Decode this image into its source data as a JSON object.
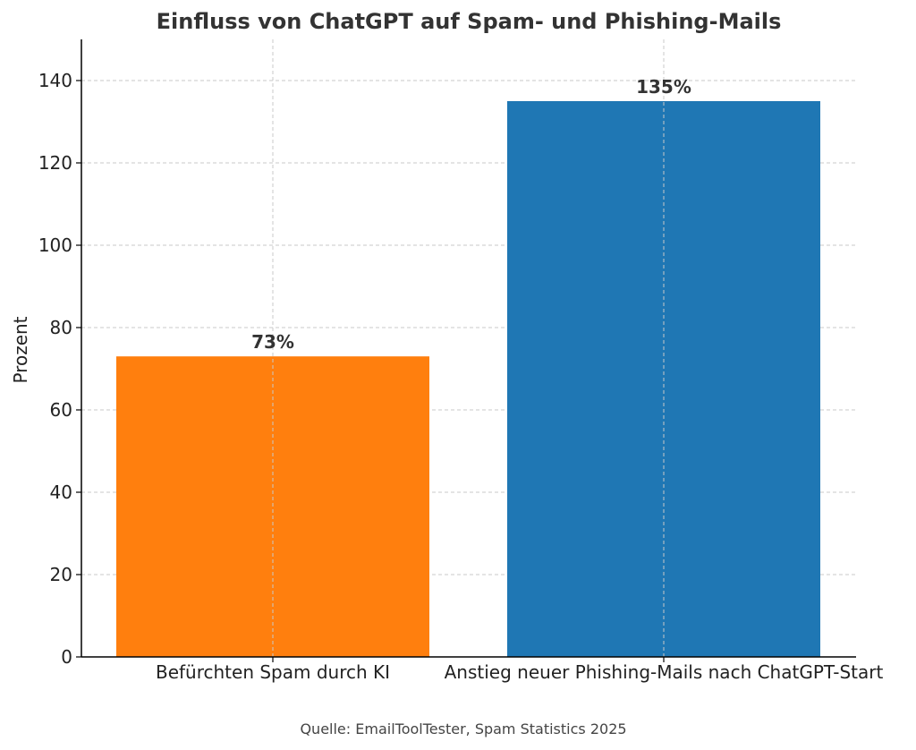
{
  "chart_data": {
    "type": "bar",
    "title": "Einfluss von ChatGPT auf Spam- und Phishing-Mails",
    "ylabel": "Prozent",
    "xlabel": "",
    "categories": [
      "Befürchten Spam durch KI",
      "Anstieg neuer Phishing-Mails nach ChatGPT-Start"
    ],
    "values": [
      73,
      135
    ],
    "data_labels": [
      "73%",
      "135%"
    ],
    "colors": [
      "#ff7f0e",
      "#1f77b4"
    ],
    "ylim": [
      0,
      150
    ],
    "yticks": [
      0,
      20,
      40,
      60,
      80,
      100,
      120,
      140
    ],
    "ytick_labels": [
      "0",
      "20",
      "40",
      "60",
      "80",
      "100",
      "120",
      "140"
    ],
    "grid": true,
    "source": "Quelle: EmailToolTester, Spam Statistics 2025"
  }
}
